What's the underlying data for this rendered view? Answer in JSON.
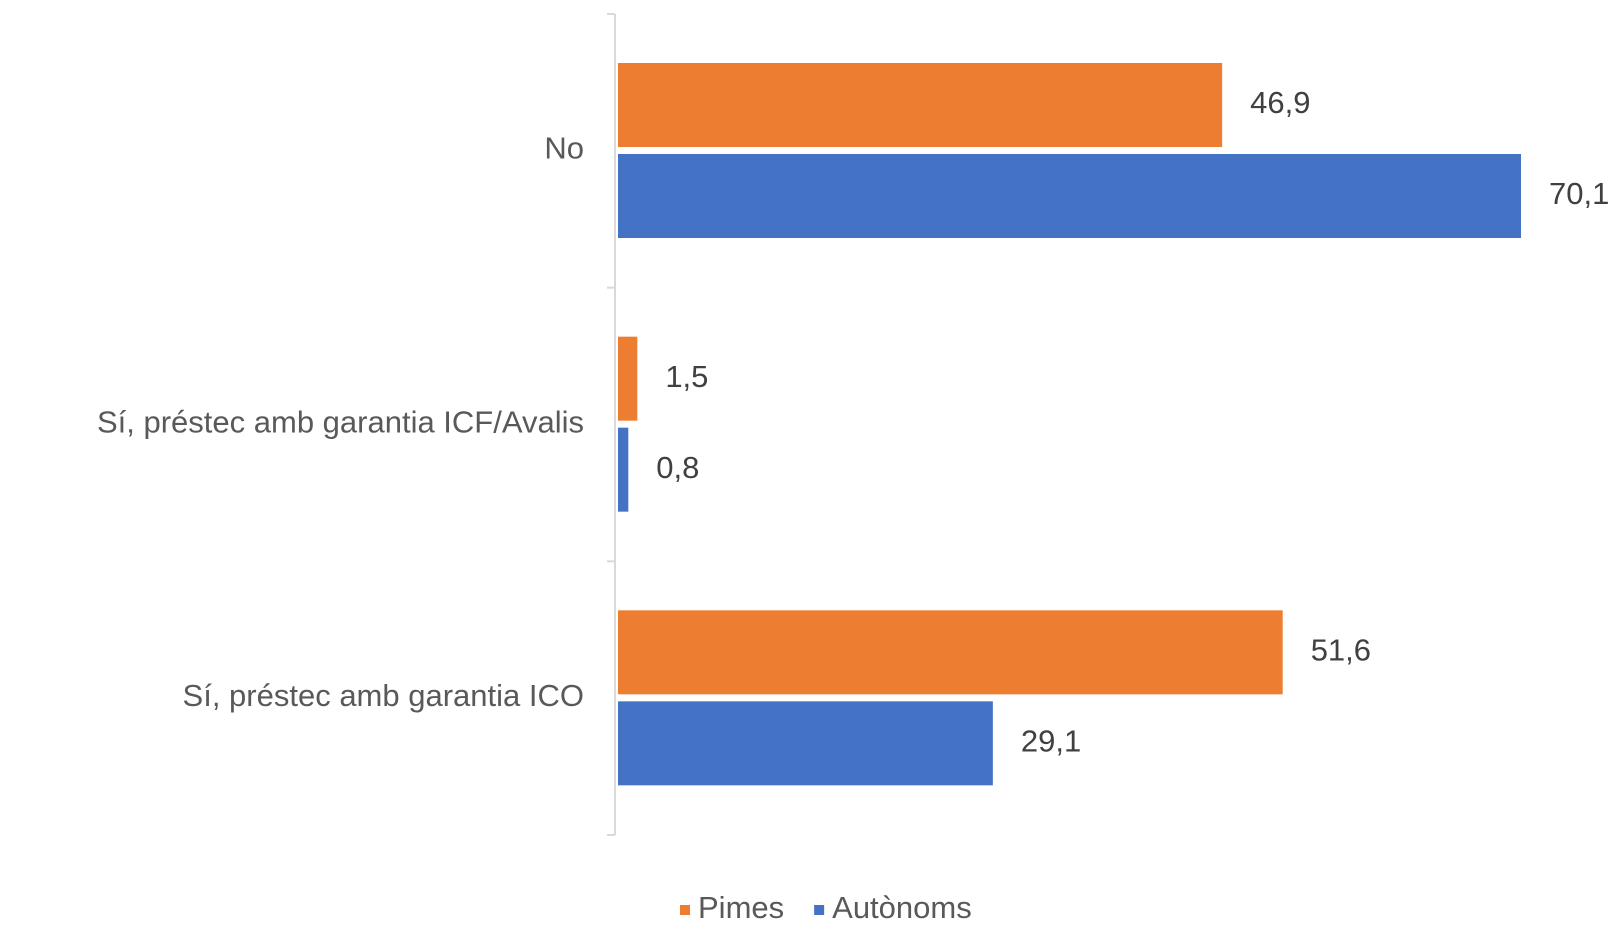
{
  "chart_data": {
    "type": "barh",
    "categories": [
      "No",
      "Sí, préstec amb garantia ICF/Avalis",
      "Sí, préstec amb garantia ICO"
    ],
    "series": [
      {
        "name": "Pimes",
        "color": "#ED7D31",
        "values": [
          46.9,
          1.5,
          51.6
        ],
        "value_labels": [
          "46,9",
          "1,5",
          "51,6"
        ]
      },
      {
        "name": "Autònoms",
        "color": "#4472C4",
        "values": [
          70.1,
          0.8,
          29.1
        ],
        "value_labels": [
          "70,1",
          "0,8",
          "29,1"
        ]
      }
    ],
    "legend": "bottom"
  }
}
